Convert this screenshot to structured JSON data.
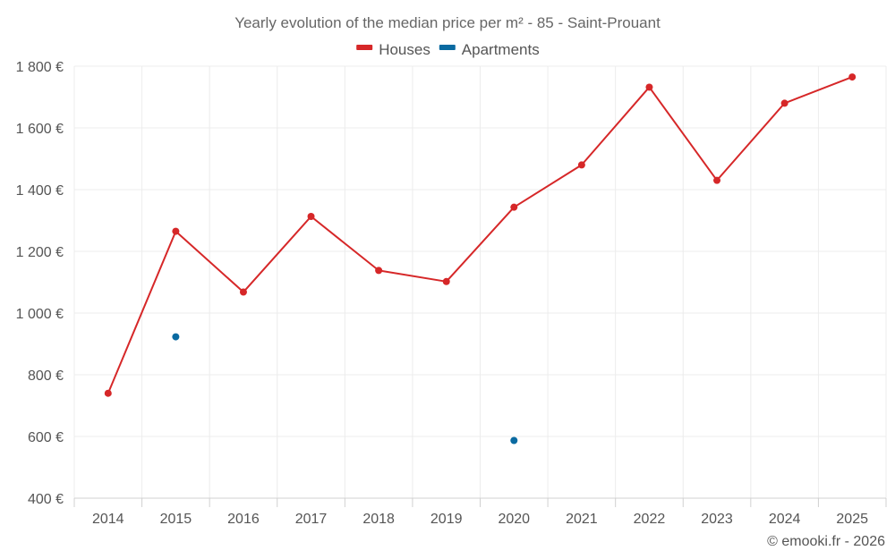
{
  "chart_data": {
    "type": "line",
    "title": "Yearly evolution of the median price per m² - 85 - Saint-Prouant",
    "xlabel": "",
    "ylabel": "",
    "categories": [
      "2014",
      "2015",
      "2016",
      "2017",
      "2018",
      "2019",
      "2020",
      "2021",
      "2022",
      "2023",
      "2024",
      "2025"
    ],
    "ylim": [
      400,
      1800
    ],
    "yticks": [
      400,
      600,
      800,
      1000,
      1200,
      1400,
      1600,
      1800
    ],
    "ytick_labels": [
      "400 €",
      "600 €",
      "800 €",
      "1 000 €",
      "1 200 €",
      "1 400 €",
      "1 600 €",
      "1 800 €"
    ],
    "grid": true,
    "legend_position": "top-center",
    "series": [
      {
        "name": "Houses",
        "color": "#d62728",
        "values": [
          740,
          1265,
          1068,
          1313,
          1138,
          1102,
          1343,
          1480,
          1732,
          1430,
          1680,
          1765
        ]
      },
      {
        "name": "Apartments",
        "color": "#0a6aa1",
        "values": [
          null,
          923,
          null,
          null,
          null,
          null,
          587,
          null,
          null,
          null,
          null,
          null
        ]
      }
    ]
  },
  "footer": {
    "copyright": "© emooki.fr - 2026"
  }
}
